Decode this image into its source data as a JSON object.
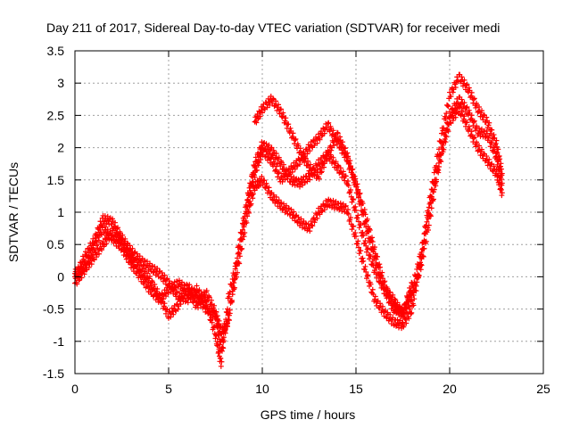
{
  "chart_data": {
    "type": "scatter",
    "title": "Day 211 of 2017, Sidereal Day-to-day VTEC variation (SDTVAR) for receiver medi",
    "xlabel": "GPS time / hours",
    "ylabel": "SDTVAR / TECUs",
    "xlim": [
      0,
      25
    ],
    "ylim": [
      -1.5,
      3.5
    ],
    "xticks": [
      0,
      5,
      10,
      15,
      20,
      25
    ],
    "xtick_labels": [
      "0",
      "5",
      "10",
      "15",
      "20",
      "25"
    ],
    "yticks": [
      -1.5,
      -1,
      -0.5,
      0,
      0.5,
      1,
      1.5,
      2,
      2.5,
      3,
      3.5
    ],
    "ytick_labels": [
      "-1.5",
      "-1",
      "-0.5",
      "0",
      "0.5",
      "1",
      "1.5",
      "2",
      "2.5",
      "3",
      "3.5"
    ],
    "grid": true,
    "marker": "+",
    "color": "#ff0000",
    "series": [
      {
        "name": "trace-1",
        "x": [
          0,
          0.5,
          1,
          1.5,
          2,
          2.5,
          3,
          3.5,
          4,
          4.5,
          5,
          5.5,
          6,
          6.5,
          7,
          7.5,
          7.8,
          8.2,
          8.7,
          9.2,
          9.6,
          10,
          10.5,
          11,
          11.5,
          12,
          12.5,
          13,
          13.5,
          14,
          14.5,
          15,
          15.5,
          16,
          16.5,
          17,
          17.5,
          18,
          18.5,
          19,
          19.5,
          20,
          20.5,
          21,
          21.5,
          22,
          22.5,
          22.8
        ],
        "y": [
          0,
          0.3,
          0.55,
          0.9,
          0.85,
          0.6,
          0.4,
          0.25,
          0.15,
          0.05,
          -0.1,
          -0.3,
          -0.35,
          -0.2,
          -0.4,
          -0.9,
          -1.35,
          -0.3,
          0.3,
          1.1,
          1.6,
          1.95,
          1.8,
          1.5,
          1.65,
          1.8,
          2.0,
          2.15,
          2.35,
          2.1,
          1.85,
          1.4,
          0.8,
          0.3,
          -0.2,
          -0.5,
          -0.55,
          -0.2,
          0.4,
          1.3,
          2.1,
          2.8,
          3.1,
          2.9,
          2.6,
          2.4,
          2.05,
          1.6
        ]
      },
      {
        "name": "trace-2",
        "x": [
          0,
          0.5,
          1,
          1.5,
          2,
          2.5,
          3,
          3.5,
          4,
          4.5,
          5,
          5.5,
          6,
          6.5,
          7,
          7.5,
          7.8,
          8.2,
          8.7,
          9.2,
          9.6,
          10,
          10.5,
          11,
          11.5,
          12,
          12.5,
          13,
          13.5,
          14,
          14.5,
          15,
          15.5,
          16,
          16.5,
          17,
          17.5,
          18,
          18.5,
          19,
          19.5,
          20,
          20.5,
          21,
          21.5,
          22,
          22.5,
          22.8
        ],
        "y": [
          -0.1,
          0.1,
          0.3,
          0.5,
          0.7,
          0.55,
          0.3,
          0.1,
          -0.05,
          -0.3,
          -0.6,
          -0.45,
          -0.15,
          -0.3,
          -0.5,
          -0.6,
          -1.1,
          -0.6,
          0.15,
          0.95,
          1.4,
          1.5,
          1.25,
          1.1,
          1.0,
          0.85,
          0.75,
          1.0,
          1.15,
          1.1,
          1.05,
          0.6,
          0.1,
          -0.35,
          -0.55,
          -0.7,
          -0.75,
          -0.5,
          0.3,
          1.2,
          1.8,
          2.4,
          2.6,
          2.3,
          2.0,
          1.8,
          1.6,
          1.3
        ]
      },
      {
        "name": "trace-3",
        "x": [
          0,
          0.5,
          1,
          1.5,
          2,
          2.5,
          3,
          3.5,
          4,
          4.5,
          5,
          5.5,
          6,
          6.5,
          7,
          7.5,
          7.8,
          8.2,
          8.7,
          9.2,
          9.6,
          10,
          10.5,
          11,
          11.5,
          12,
          12.5,
          13,
          13.5,
          14,
          14.5,
          15,
          15.5,
          16,
          16.5,
          17,
          17.5,
          18,
          18.5,
          19,
          19.5,
          20,
          20.5,
          21,
          21.5,
          22,
          22.5,
          22.8
        ],
        "y": [
          0.05,
          0.15,
          0.45,
          0.75,
          0.6,
          0.45,
          0.2,
          0.0,
          -0.2,
          -0.35,
          -0.2,
          -0.1,
          -0.2,
          -0.45,
          -0.25,
          -0.55,
          -0.85,
          -0.7,
          0.4,
          1.2,
          1.75,
          2.05,
          1.95,
          1.75,
          1.5,
          1.45,
          1.55,
          1.75,
          1.9,
          1.7,
          1.5,
          1.0,
          0.5,
          0.1,
          -0.2,
          -0.35,
          -0.6,
          -0.3,
          0.2,
          1.0,
          1.9,
          2.5,
          2.75,
          2.55,
          2.25,
          2.2,
          1.85,
          1.45
        ]
      },
      {
        "name": "trace-4",
        "x": [
          9.6,
          10,
          10.5,
          11,
          11.5,
          12,
          12.5,
          13,
          13.5,
          14,
          14.5,
          15,
          15.5,
          16,
          16.5,
          17,
          17.5,
          18
        ],
        "y": [
          2.4,
          2.6,
          2.75,
          2.55,
          2.25,
          1.95,
          1.7,
          1.55,
          1.9,
          2.2,
          1.9,
          1.45,
          0.95,
          0.4,
          -0.1,
          -0.45,
          -0.55,
          -0.1
        ]
      }
    ]
  }
}
